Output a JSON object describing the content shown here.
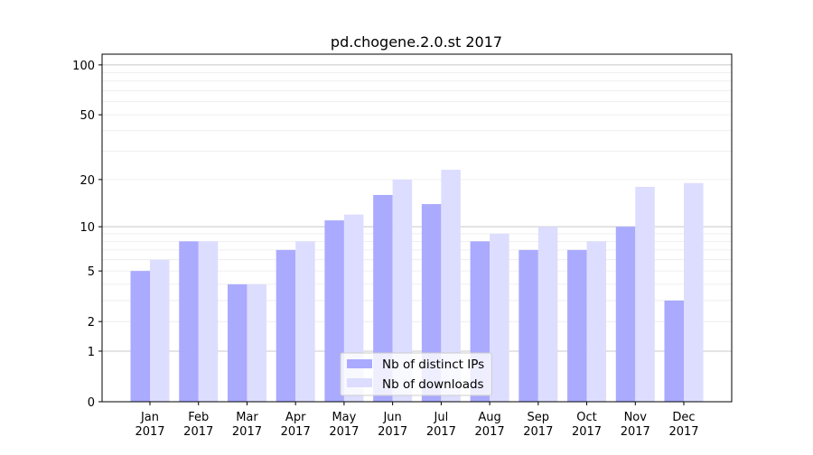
{
  "chart_data": {
    "type": "bar",
    "title": "pd.chogene.2.0.st 2017",
    "xlabel": "",
    "ylabel": "",
    "yscale": "log(1+y)",
    "ylim": [
      0,
      116
    ],
    "yticks": [
      0,
      1,
      2,
      5,
      10,
      20,
      50,
      100
    ],
    "grid": true,
    "legend_position": "bottom-center",
    "categories": [
      "Jan\n2017",
      "Feb\n2017",
      "Mar\n2017",
      "Apr\n2017",
      "May\n2017",
      "Jun\n2017",
      "Jul\n2017",
      "Aug\n2017",
      "Sep\n2017",
      "Oct\n2017",
      "Nov\n2017",
      "Dec\n2017"
    ],
    "series": [
      {
        "name": "Nb of distinct IPs",
        "color": "#aaaaff",
        "values": [
          5,
          8,
          4,
          7,
          11,
          16,
          14,
          8,
          7,
          7,
          10,
          3
        ]
      },
      {
        "name": "Nb of downloads",
        "color": "#ddddff",
        "values": [
          6,
          8,
          4,
          8,
          12,
          20,
          23,
          9,
          10,
          8,
          18,
          19
        ]
      }
    ]
  }
}
